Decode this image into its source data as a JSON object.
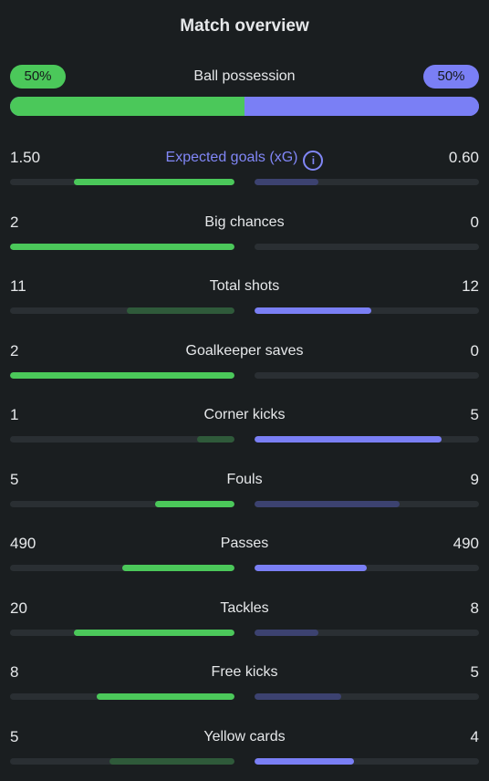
{
  "title": "Match overview",
  "colors": {
    "home_strong": "#4bc85a",
    "home_weak": "#2f5a3a",
    "away_strong": "#7a7ff5",
    "away_weak": "#3c4270",
    "track": "#2a2f33"
  },
  "possession": {
    "label": "Ball possession",
    "home": "50%",
    "away": "50%",
    "home_fraction": 0.5
  },
  "stats": [
    {
      "label": "Expected goals (xG)",
      "home": "1.50",
      "away": "0.60",
      "accent": true,
      "info_icon": "info-icon",
      "home_fraction": 0.715,
      "away_fraction": 0.285,
      "home_strong": true,
      "away_strong": false
    },
    {
      "label": "Big chances",
      "home": "2",
      "away": "0",
      "home_fraction": 1.0,
      "away_fraction": 0.0,
      "home_strong": true,
      "away_strong": false
    },
    {
      "label": "Total shots",
      "home": "11",
      "away": "12",
      "home_fraction": 0.48,
      "away_fraction": 0.52,
      "home_strong": false,
      "away_strong": true
    },
    {
      "label": "Goalkeeper saves",
      "home": "2",
      "away": "0",
      "home_fraction": 1.0,
      "away_fraction": 0.0,
      "home_strong": true,
      "away_strong": false
    },
    {
      "label": "Corner kicks",
      "home": "1",
      "away": "5",
      "home_fraction": 0.165,
      "away_fraction": 0.835,
      "home_strong": false,
      "away_strong": true
    },
    {
      "label": "Fouls",
      "home": "5",
      "away": "9",
      "home_fraction": 0.355,
      "away_fraction": 0.645,
      "home_strong": true,
      "away_strong": false
    },
    {
      "label": "Passes",
      "home": "490",
      "away": "490",
      "home_fraction": 0.5,
      "away_fraction": 0.5,
      "home_strong": true,
      "away_strong": true
    },
    {
      "label": "Tackles",
      "home": "20",
      "away": "8",
      "home_fraction": 0.715,
      "away_fraction": 0.285,
      "home_strong": true,
      "away_strong": false
    },
    {
      "label": "Free kicks",
      "home": "8",
      "away": "5",
      "home_fraction": 0.615,
      "away_fraction": 0.385,
      "home_strong": true,
      "away_strong": false
    },
    {
      "label": "Yellow cards",
      "home": "5",
      "away": "4",
      "home_fraction": 0.555,
      "away_fraction": 0.445,
      "home_strong": false,
      "away_strong": true
    }
  ]
}
